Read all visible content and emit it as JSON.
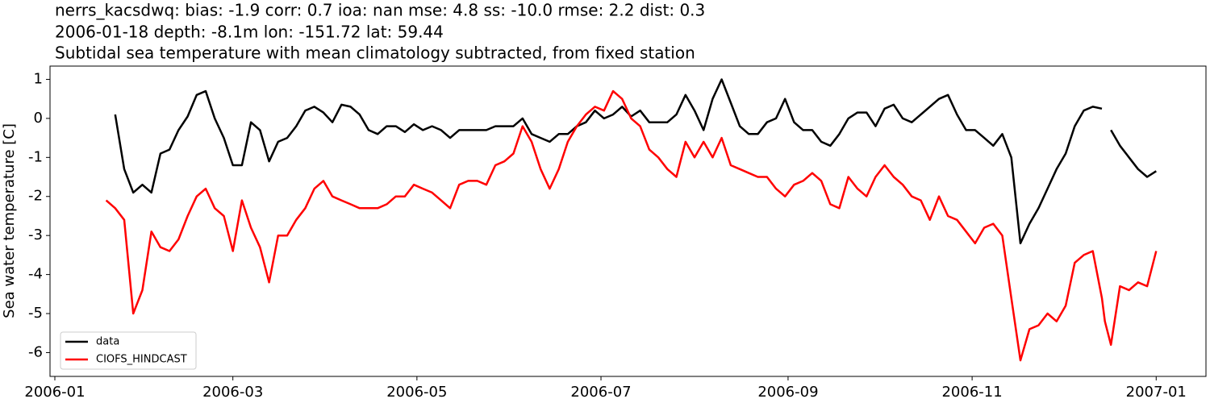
{
  "chart_data": {
    "type": "line",
    "title_lines": [
      "nerrs_kacsdwq: bias: -1.9  corr: 0.7  ioa: nan  mse: 4.8  ss: -10.0  rmse: 2.2  dist: 0.3",
      "2006-01-18 depth: -8.1m lon: -151.72 lat: 59.44",
      "Subtidal sea temperature with mean climatology subtracted, from fixed station"
    ],
    "ylabel": "Sea water temperature [C]",
    "x": [
      17,
      20,
      23,
      26,
      29,
      32,
      35,
      38,
      41,
      44,
      47,
      50,
      53,
      56,
      59,
      62,
      65,
      68,
      71,
      74,
      77,
      80,
      83,
      86,
      89,
      92,
      95,
      98,
      101,
      104,
      107,
      110,
      113,
      116,
      119,
      122,
      125,
      128,
      131,
      134,
      137,
      140,
      143,
      146,
      149,
      152,
      155,
      158,
      161,
      164,
      167,
      170,
      173,
      176,
      179,
      182,
      185,
      188,
      191,
      194,
      197,
      200,
      203,
      206,
      209,
      212,
      215,
      218,
      221,
      224,
      227,
      230,
      233,
      236,
      239,
      242,
      245,
      248,
      251,
      254,
      257,
      260,
      263,
      266,
      269,
      272,
      275,
      278,
      281,
      284,
      287,
      290,
      293,
      296,
      299,
      302,
      305,
      308,
      311,
      314,
      317,
      320,
      323,
      326,
      329,
      332,
      335,
      338,
      341,
      344,
      347,
      348,
      350,
      353,
      356,
      359,
      362,
      365
    ],
    "series": [
      {
        "name": "data",
        "color": "#000000",
        "values": [
          null,
          0.1,
          -1.3,
          -1.9,
          -1.7,
          -1.9,
          -0.9,
          -0.8,
          -0.3,
          0.05,
          0.6,
          0.7,
          0.0,
          -0.5,
          -1.2,
          -1.2,
          -0.1,
          -0.3,
          -1.1,
          -0.6,
          -0.5,
          -0.2,
          0.2,
          0.3,
          0.15,
          -0.1,
          0.35,
          0.3,
          0.1,
          -0.3,
          -0.4,
          -0.2,
          -0.2,
          -0.35,
          -0.15,
          -0.3,
          -0.2,
          -0.3,
          -0.5,
          -0.3,
          -0.3,
          -0.3,
          -0.3,
          -0.2,
          -0.2,
          -0.2,
          0,
          -0.4,
          -0.5,
          -0.6,
          -0.4,
          -0.4,
          -0.2,
          -0.1,
          0.2,
          0,
          0.1,
          0.3,
          0.05,
          0.2,
          -0.1,
          -0.1,
          -0.1,
          0.1,
          0.6,
          0.2,
          -0.3,
          0.5,
          1.0,
          0.4,
          -0.2,
          -0.4,
          -0.4,
          -0.1,
          0,
          0.5,
          -0.1,
          -0.3,
          -0.3,
          -0.6,
          -0.7,
          -0.4,
          0,
          0.15,
          0.15,
          -0.2,
          0.25,
          0.35,
          0,
          -0.1,
          0.1,
          0.3,
          0.5,
          0.6,
          0.1,
          -0.3,
          -0.3,
          -0.5,
          -0.7,
          -0.4,
          -1.0,
          -3.2,
          -2.7,
          -2.3,
          -1.8,
          -1.3,
          -0.9,
          -0.2,
          0.2,
          0.3,
          0.25,
          null,
          -0.3,
          -0.7,
          -1.0,
          -1.3,
          -1.5,
          -1.35
        ]
      },
      {
        "name": "CIOFS_HINDCAST",
        "color": "#ff0000",
        "values": [
          -2.1,
          -2.3,
          -2.6,
          -5.0,
          -4.4,
          -2.9,
          -3.3,
          -3.4,
          -3.1,
          -2.5,
          -2.0,
          -1.8,
          -2.3,
          -2.5,
          -3.4,
          -2.1,
          -2.8,
          -3.3,
          -4.2,
          -3.0,
          -3.0,
          -2.6,
          -2.3,
          -1.8,
          -1.6,
          -2.0,
          -2.1,
          -2.2,
          -2.3,
          -2.3,
          -2.3,
          -2.2,
          -2.0,
          -2.0,
          -1.7,
          -1.8,
          -1.9,
          -2.1,
          -2.3,
          -1.7,
          -1.6,
          -1.6,
          -1.7,
          -1.2,
          -1.1,
          -0.9,
          -0.2,
          -0.6,
          -1.3,
          -1.8,
          -1.3,
          -0.6,
          -0.2,
          0.1,
          0.3,
          0.2,
          0.7,
          0.5,
          0,
          -0.2,
          -0.8,
          -1.0,
          -1.3,
          -1.5,
          -0.6,
          -1.0,
          -0.6,
          -1.0,
          -0.5,
          -1.2,
          -1.3,
          -1.4,
          -1.5,
          -1.5,
          -1.8,
          -2.0,
          -1.7,
          -1.6,
          -1.4,
          -1.6,
          -2.2,
          -2.3,
          -1.5,
          -1.8,
          -2.0,
          -1.5,
          -1.2,
          -1.5,
          -1.7,
          -2.0,
          -2.1,
          -2.6,
          -2.0,
          -2.5,
          -2.6,
          -2.9,
          -3.2,
          -2.8,
          -2.7,
          -3.0,
          -4.6,
          -6.2,
          -5.4,
          -5.3,
          -5.0,
          -5.2,
          -4.8,
          -3.7,
          -3.5,
          -3.4,
          -4.6,
          -5.2,
          -5.8,
          -4.3,
          -4.4,
          -4.2,
          -4.3,
          -3.4
        ]
      }
    ],
    "xlim": [
      -1.6,
      381.5
    ],
    "xticks": [
      {
        "value": 0,
        "label": "2006-01"
      },
      {
        "value": 59,
        "label": "2006-03"
      },
      {
        "value": 120,
        "label": "2006-05"
      },
      {
        "value": 181,
        "label": "2006-07"
      },
      {
        "value": 243,
        "label": "2006-09"
      },
      {
        "value": 304,
        "label": "2006-11"
      },
      {
        "value": 365,
        "label": "2007-01"
      }
    ],
    "ylim": [
      -6.61,
      1.34
    ],
    "yticks": [
      -6,
      -5,
      -4,
      -3,
      -2,
      -1,
      0,
      1
    ],
    "grid": false,
    "legend": "lower left"
  }
}
